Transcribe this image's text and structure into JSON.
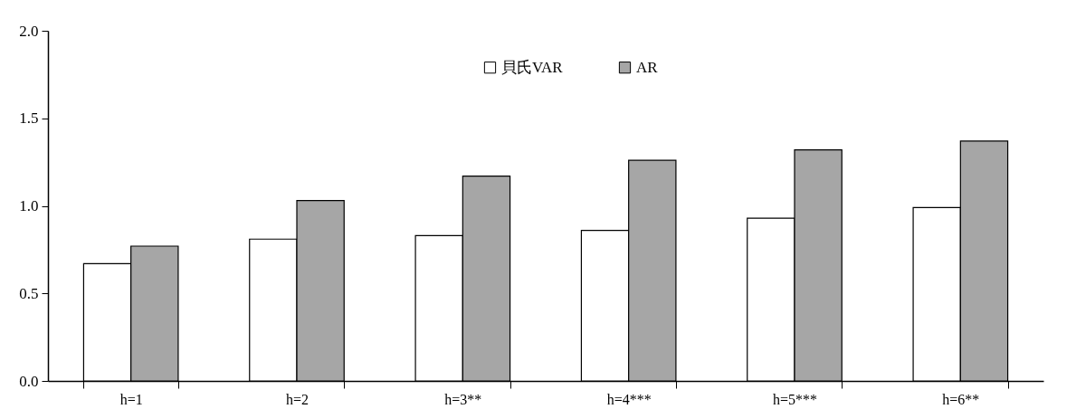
{
  "chart_data": {
    "type": "bar",
    "categories": [
      "h=1",
      "h=2",
      "h=3**",
      "h=4***",
      "h=5***",
      "h=6**"
    ],
    "series": [
      {
        "name": "貝氏VAR",
        "color": "#ffffff",
        "values": [
          0.67,
          0.81,
          0.83,
          0.86,
          0.93,
          0.99
        ]
      },
      {
        "name": "AR",
        "color": "#a6a6a6",
        "values": [
          0.77,
          1.03,
          1.17,
          1.26,
          1.32,
          1.37
        ]
      }
    ],
    "ylim": [
      0,
      2
    ],
    "yticks": [
      {
        "value": 0,
        "label": "0.0"
      },
      {
        "value": 0.5,
        "label": "0.5"
      },
      {
        "value": 1,
        "label": "1.0"
      },
      {
        "value": 1.5,
        "label": "1.5"
      },
      {
        "value": 2,
        "label": "2.0"
      }
    ],
    "grid": false,
    "legend": "top"
  }
}
